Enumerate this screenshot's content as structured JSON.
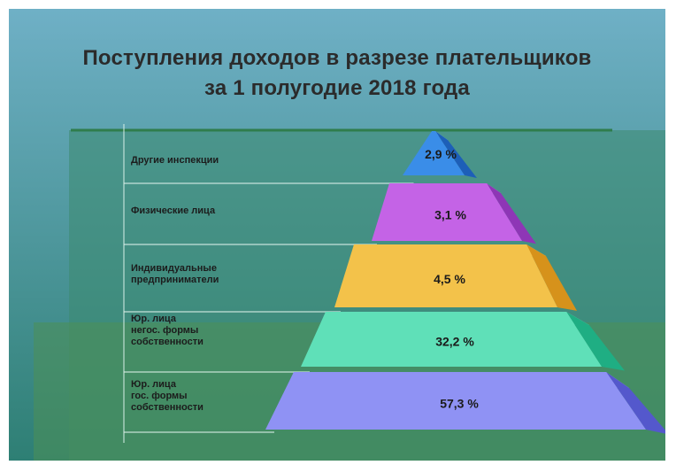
{
  "title": {
    "line1": "Поступления доходов в разрезе плательщиков",
    "line2": "за 1 полугодие 2018 года"
  },
  "colors": {
    "background_top": "#6fb0c6",
    "background_bottom": "#2e7f74",
    "panel": "#3c8a70",
    "lower_panel": "#4d8f55",
    "lines": "#d8f0e8"
  },
  "chart_data": {
    "type": "pyramid",
    "title": "Поступления доходов в разрезе плательщиков за 1 полугодие 2018 года",
    "unit": "%",
    "levels": [
      {
        "label": "Другие инспекции",
        "value_label": "2,9 %",
        "value": 2.9,
        "colors": {
          "front": "#3a8de8",
          "side": "#1d5fb8",
          "top": "#9ad2ff"
        }
      },
      {
        "label": "Физические лица",
        "value_label": "3,1 %",
        "value": 3.1,
        "colors": {
          "front": "#c463e6",
          "side": "#8e36b6",
          "top": "#e3a2f5"
        }
      },
      {
        "label": "Индивидуальные\nпредприниматели",
        "value_label": "4,5 %",
        "value": 4.5,
        "colors": {
          "front": "#f3c24a",
          "side": "#d6921b",
          "top": "#f8d97d"
        }
      },
      {
        "label": "Юр. лица\nнегос. формы\nсобственности",
        "value_label": "32,2 %",
        "value": 32.2,
        "colors": {
          "front": "#5fe0b8",
          "side": "#1fae83",
          "top": "#9ff2d3"
        }
      },
      {
        "label": "Юр. лица\nгос. формы\nсобственности",
        "value_label": "57,3 %",
        "value": 57.3,
        "colors": {
          "front": "#8f92f4",
          "side": "#5458cc",
          "top": "#b8baf8"
        }
      }
    ]
  }
}
